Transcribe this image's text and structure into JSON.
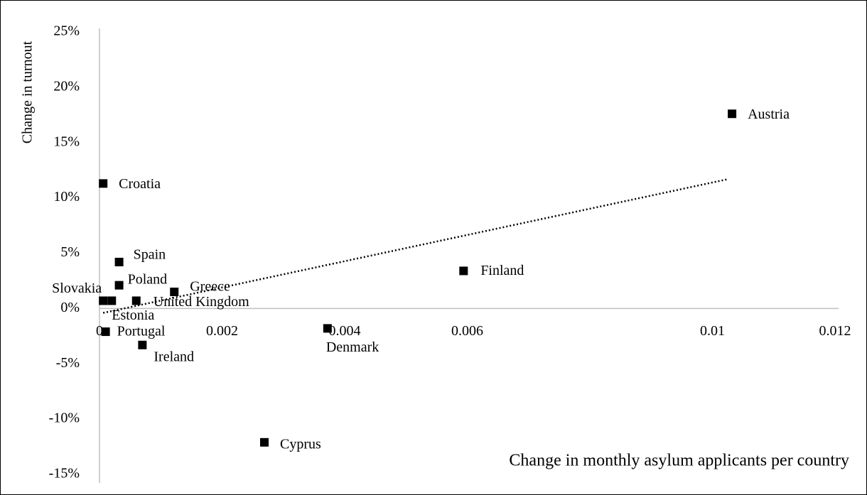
{
  "chart_data": {
    "type": "scatter",
    "xlabel": "Change in monthly asylum applicants per country",
    "ylabel": "Change in turnout",
    "series": [
      {
        "name": null,
        "color": "#000000",
        "labels": [
          "Austria",
          "Croatia",
          "Spain",
          "Poland",
          "Slovakia",
          "Estonia",
          "United Kingdom",
          "Greece",
          "Finland",
          "Portugal",
          "Ireland",
          "Denmark",
          "Cyprus"
        ],
        "x": [
          0.01032,
          6e-05,
          0.00032,
          0.00032,
          6e-05,
          0.0002,
          0.0006,
          0.00122,
          0.00594,
          0.0001,
          0.0007,
          0.00372,
          0.00269
        ],
        "values": [
          17.6,
          11.3,
          4.2,
          2.1,
          0.7,
          0.7,
          0.7,
          1.5,
          3.4,
          -2.1,
          -3.3,
          -1.8,
          -12.1
        ]
      }
    ],
    "trendline": {
      "x": [
        6e-05,
        0.01026
      ],
      "values": [
        -0.4,
        11.7
      ],
      "style": "dotted"
    },
    "xlim": [
      0,
      0.012
    ],
    "xticks": [
      0,
      0.002,
      0.004,
      0.006,
      0.01,
      0.012
    ],
    "ylim": [
      -15,
      25
    ],
    "yticks": [
      {
        "value": 25,
        "label": "25%"
      },
      {
        "value": 20,
        "label": "20%"
      },
      {
        "value": 15,
        "label": "15%"
      },
      {
        "value": 10,
        "label": "10%"
      },
      {
        "value": 5,
        "label": "5%"
      },
      {
        "value": 0,
        "label": "0%"
      },
      {
        "value": -5,
        "label": "-5%"
      },
      {
        "value": -10,
        "label": "-10%"
      },
      {
        "value": -15,
        "label": "-15%"
      }
    ],
    "grid": false
  }
}
